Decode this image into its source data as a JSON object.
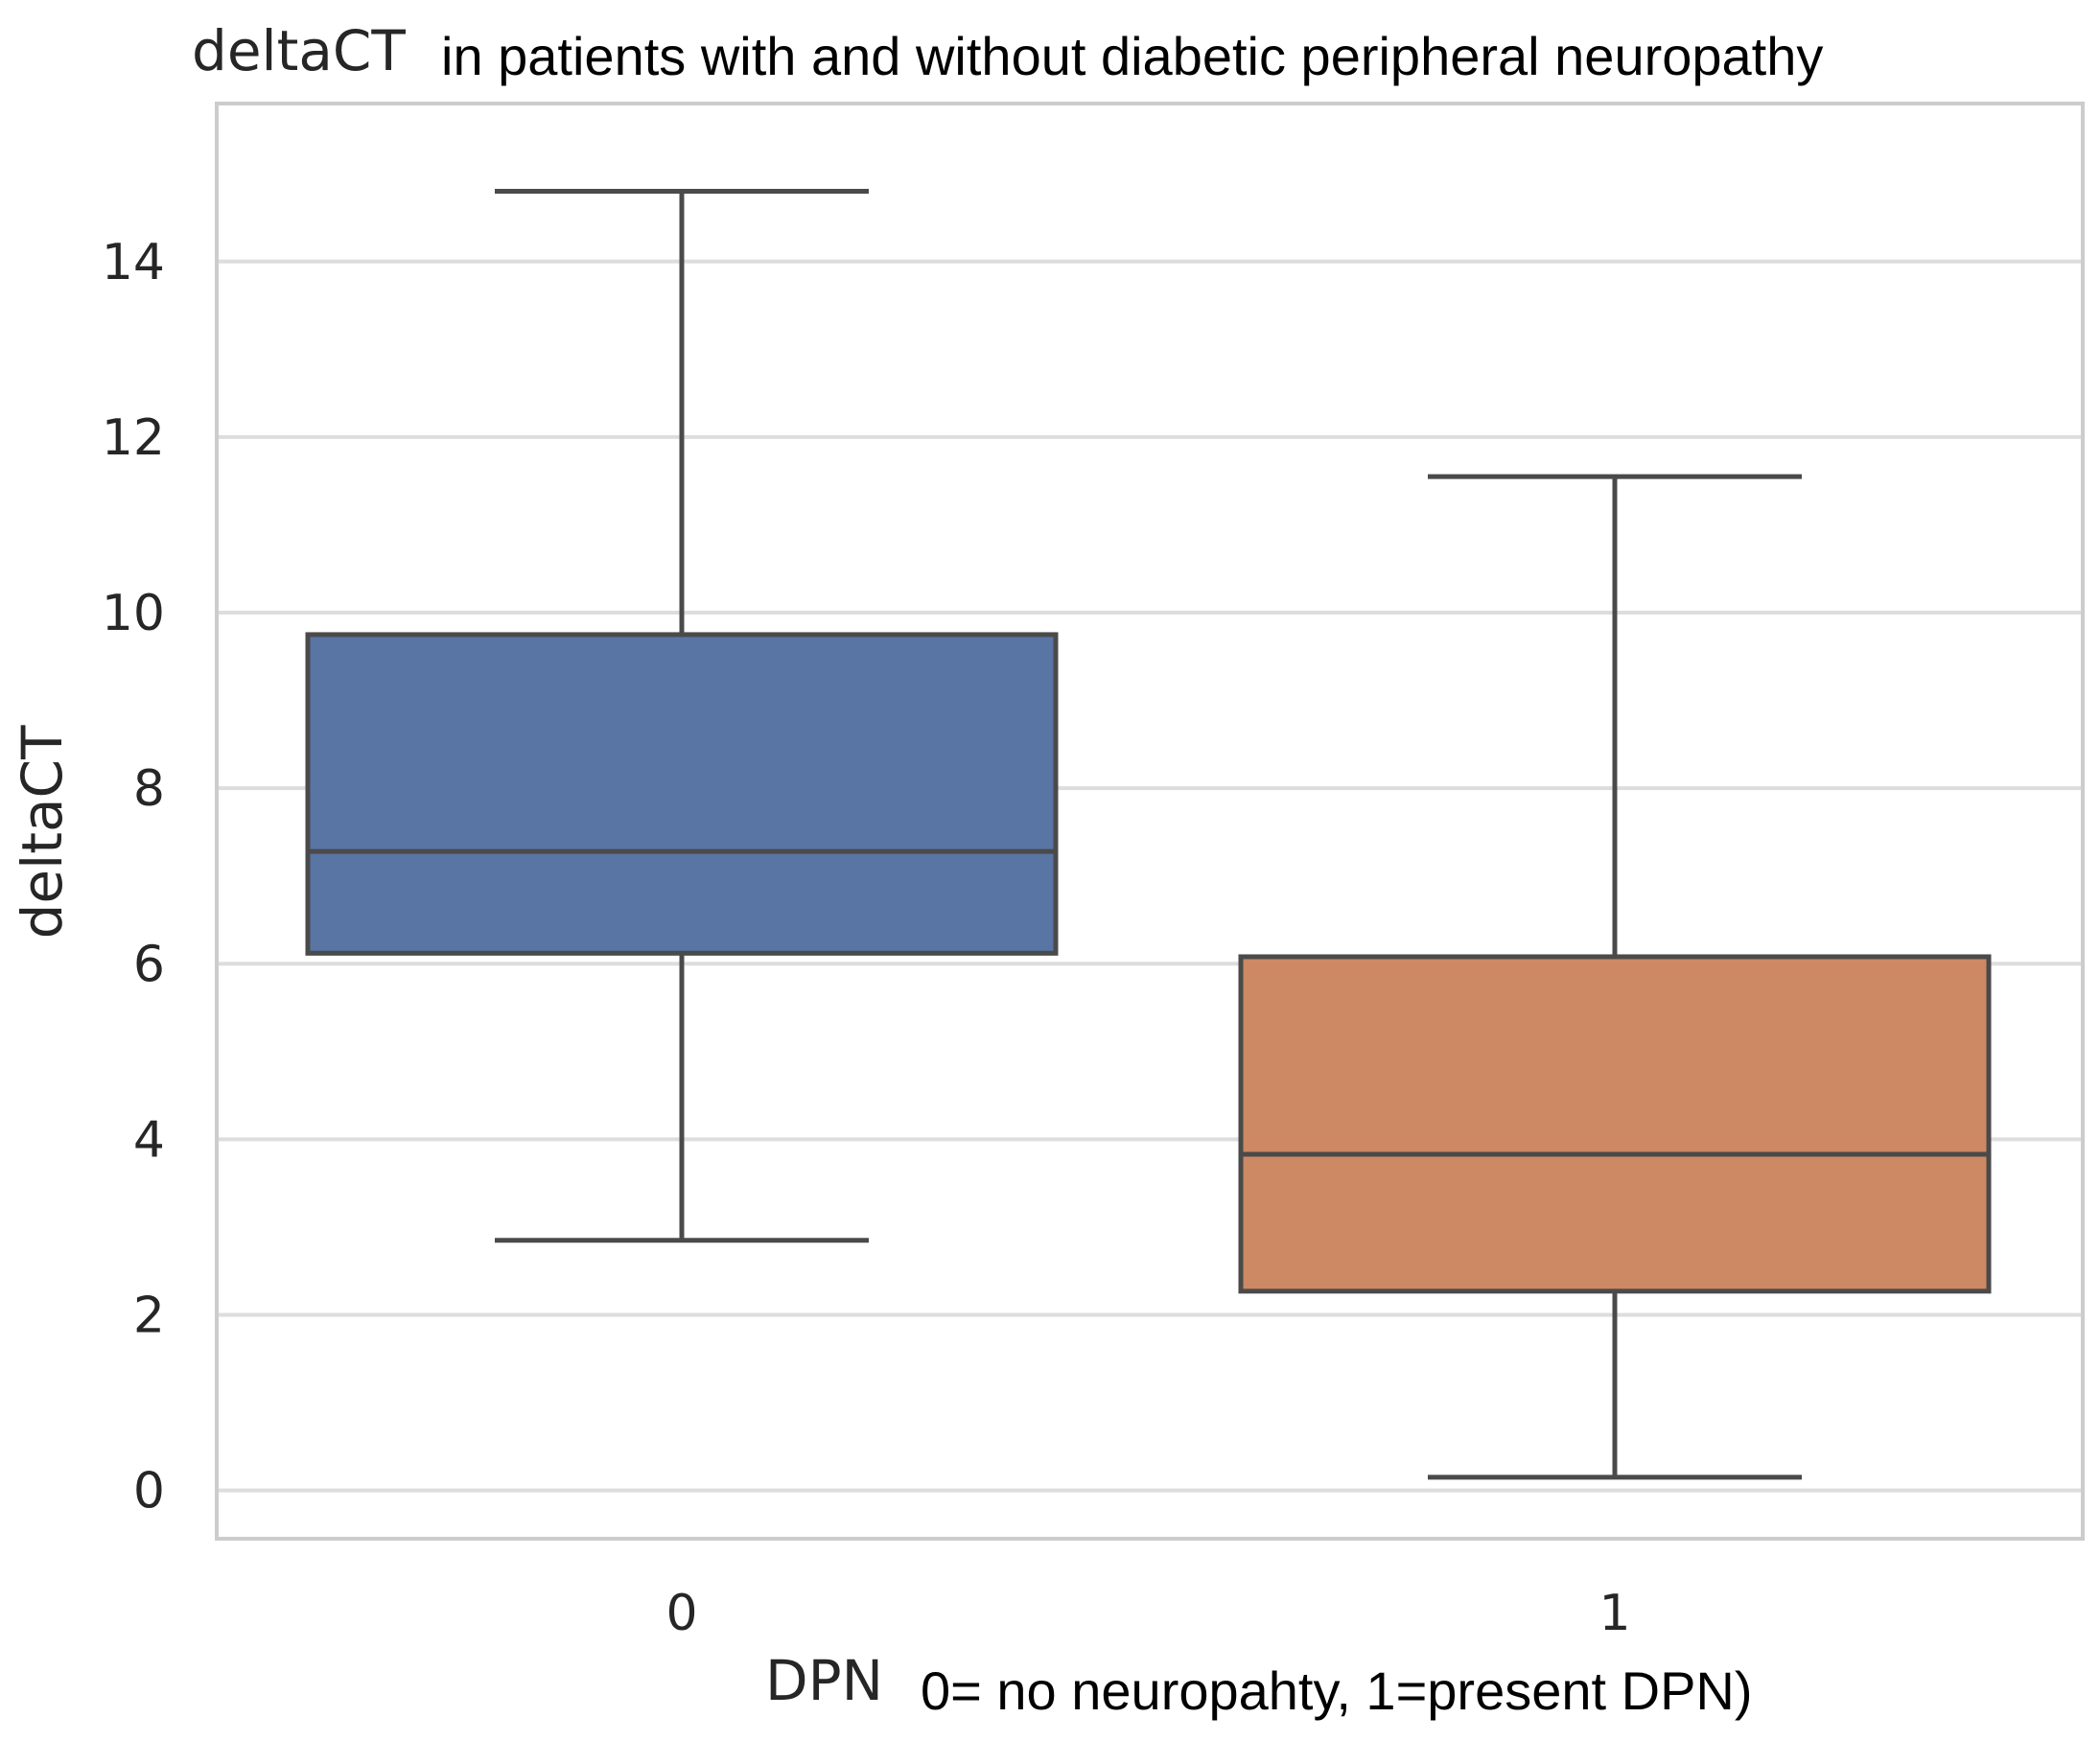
{
  "chart_data": {
    "type": "box",
    "title": "deltaCT",
    "title_suffix": "in patients with and without diabetic peripheral neuropathy",
    "xlabel": "DPN",
    "xlabel_note": "0= no neuropahty, 1=present DPN)",
    "ylabel": "deltaCT",
    "ylim": [
      -0.55,
      15.8
    ],
    "yticks": [
      0,
      2,
      4,
      6,
      8,
      10,
      12,
      14
    ],
    "grid": true,
    "categories": [
      "0",
      "1"
    ],
    "boxes": [
      {
        "category": "0",
        "whisker_low": 2.85,
        "q1": 6.12,
        "median": 7.28,
        "q3": 9.75,
        "whisker_high": 14.8,
        "color": "#5975a4"
      },
      {
        "category": "1",
        "whisker_low": 0.15,
        "q1": 2.27,
        "median": 3.83,
        "q3": 6.08,
        "whisker_high": 11.55,
        "color": "#cc8963"
      }
    ],
    "line_color": "#4a4a4a",
    "grid_color": "#dddddd",
    "frame_color": "#cccccc"
  }
}
